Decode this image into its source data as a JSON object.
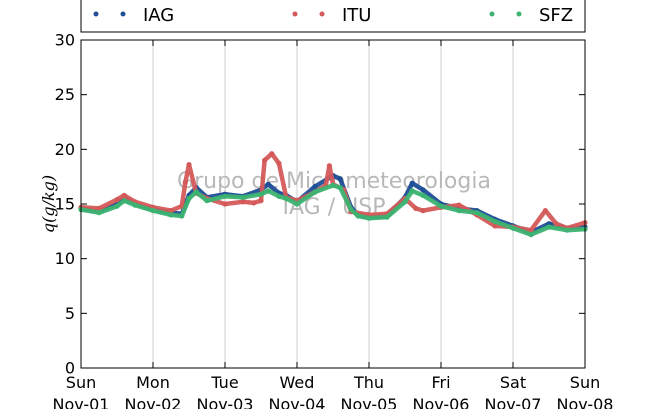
{
  "chart_data": {
    "type": "line",
    "title": "",
    "xlabel": "",
    "ylabel": "q(g/kg)",
    "ylim": [
      0,
      30
    ],
    "yticks": [
      0,
      5,
      10,
      15,
      20,
      25,
      30
    ],
    "xlim": [
      0,
      7
    ],
    "xticks": [
      {
        "day": "Sun",
        "date": "Nov-01"
      },
      {
        "day": "Mon",
        "date": "Nov-02"
      },
      {
        "day": "Tue",
        "date": "Nov-03"
      },
      {
        "day": "Wed",
        "date": "Nov-04"
      },
      {
        "day": "Thu",
        "date": "Nov-05"
      },
      {
        "day": "Fri",
        "date": "Nov-06"
      },
      {
        "day": "Sat",
        "date": "Nov-07"
      },
      {
        "day": "Sun",
        "date": "Nov-08"
      }
    ],
    "grid": "vertical",
    "legend_position": "top",
    "watermark": [
      "Grupo de Micrometeorologia",
      "IAG / USP"
    ],
    "series": [
      {
        "name": "IAG",
        "color": "#1f4e96",
        "x": [
          0,
          0.25,
          0.5,
          0.6,
          0.75,
          1.0,
          1.25,
          1.4,
          1.5,
          1.6,
          1.75,
          2.0,
          2.25,
          2.5,
          2.6,
          2.75,
          2.85,
          3.0,
          3.25,
          3.5,
          3.6,
          3.75,
          3.85,
          4.0,
          4.25,
          4.5,
          4.6,
          4.75,
          5.0,
          5.25,
          5.5,
          5.75,
          6.0,
          6.25,
          6.5,
          6.75,
          7.0
        ],
        "values": [
          14.6,
          14.3,
          15.0,
          15.6,
          15.0,
          14.5,
          14.2,
          14.1,
          15.8,
          16.5,
          15.6,
          15.9,
          15.7,
          16.3,
          16.8,
          16.0,
          15.8,
          15.2,
          16.6,
          17.6,
          17.3,
          14.7,
          14.0,
          13.8,
          13.9,
          15.6,
          16.9,
          16.3,
          15.0,
          14.6,
          14.4,
          13.6,
          13.0,
          12.4,
          13.2,
          12.8,
          12.9
        ]
      },
      {
        "name": "ITU",
        "color": "#d45a5a",
        "x": [
          0,
          0.25,
          0.5,
          0.6,
          0.75,
          1.0,
          1.25,
          1.4,
          1.45,
          1.5,
          1.6,
          1.75,
          2.0,
          2.25,
          2.4,
          2.5,
          2.55,
          2.65,
          2.75,
          2.85,
          3.0,
          3.25,
          3.4,
          3.45,
          3.5,
          3.65,
          3.75,
          4.0,
          4.25,
          4.5,
          4.65,
          4.75,
          5.0,
          5.25,
          5.5,
          5.75,
          6.0,
          6.25,
          6.45,
          6.6,
          6.75,
          7.0
        ],
        "values": [
          14.7,
          14.6,
          15.4,
          15.8,
          15.2,
          14.7,
          14.4,
          14.8,
          17.0,
          18.6,
          16.0,
          15.5,
          15.0,
          15.2,
          15.1,
          15.3,
          19.0,
          19.6,
          18.7,
          15.6,
          15.3,
          16.1,
          16.7,
          18.5,
          16.8,
          16.3,
          14.3,
          14.0,
          14.1,
          15.5,
          14.6,
          14.4,
          14.7,
          14.9,
          14.0,
          13.0,
          12.9,
          12.6,
          14.4,
          13.2,
          12.8,
          13.3
        ]
      },
      {
        "name": "SFZ",
        "color": "#3cb371",
        "x": [
          0,
          0.25,
          0.5,
          0.6,
          0.75,
          1.0,
          1.25,
          1.4,
          1.5,
          1.6,
          1.75,
          2.0,
          2.25,
          2.5,
          2.6,
          2.75,
          2.85,
          3.0,
          3.25,
          3.5,
          3.6,
          3.75,
          3.85,
          4.0,
          4.25,
          4.5,
          4.6,
          4.75,
          5.0,
          5.25,
          5.5,
          5.75,
          6.0,
          6.25,
          6.5,
          6.75,
          7.0
        ],
        "values": [
          14.5,
          14.2,
          14.8,
          15.3,
          14.9,
          14.4,
          14.0,
          13.9,
          15.5,
          16.1,
          15.3,
          15.7,
          15.6,
          15.9,
          16.2,
          15.7,
          15.5,
          15.0,
          16.1,
          16.7,
          16.5,
          14.5,
          13.9,
          13.7,
          13.8,
          15.2,
          16.2,
          15.8,
          14.8,
          14.4,
          14.2,
          13.4,
          12.8,
          12.2,
          12.9,
          12.6,
          12.7
        ]
      }
    ]
  }
}
